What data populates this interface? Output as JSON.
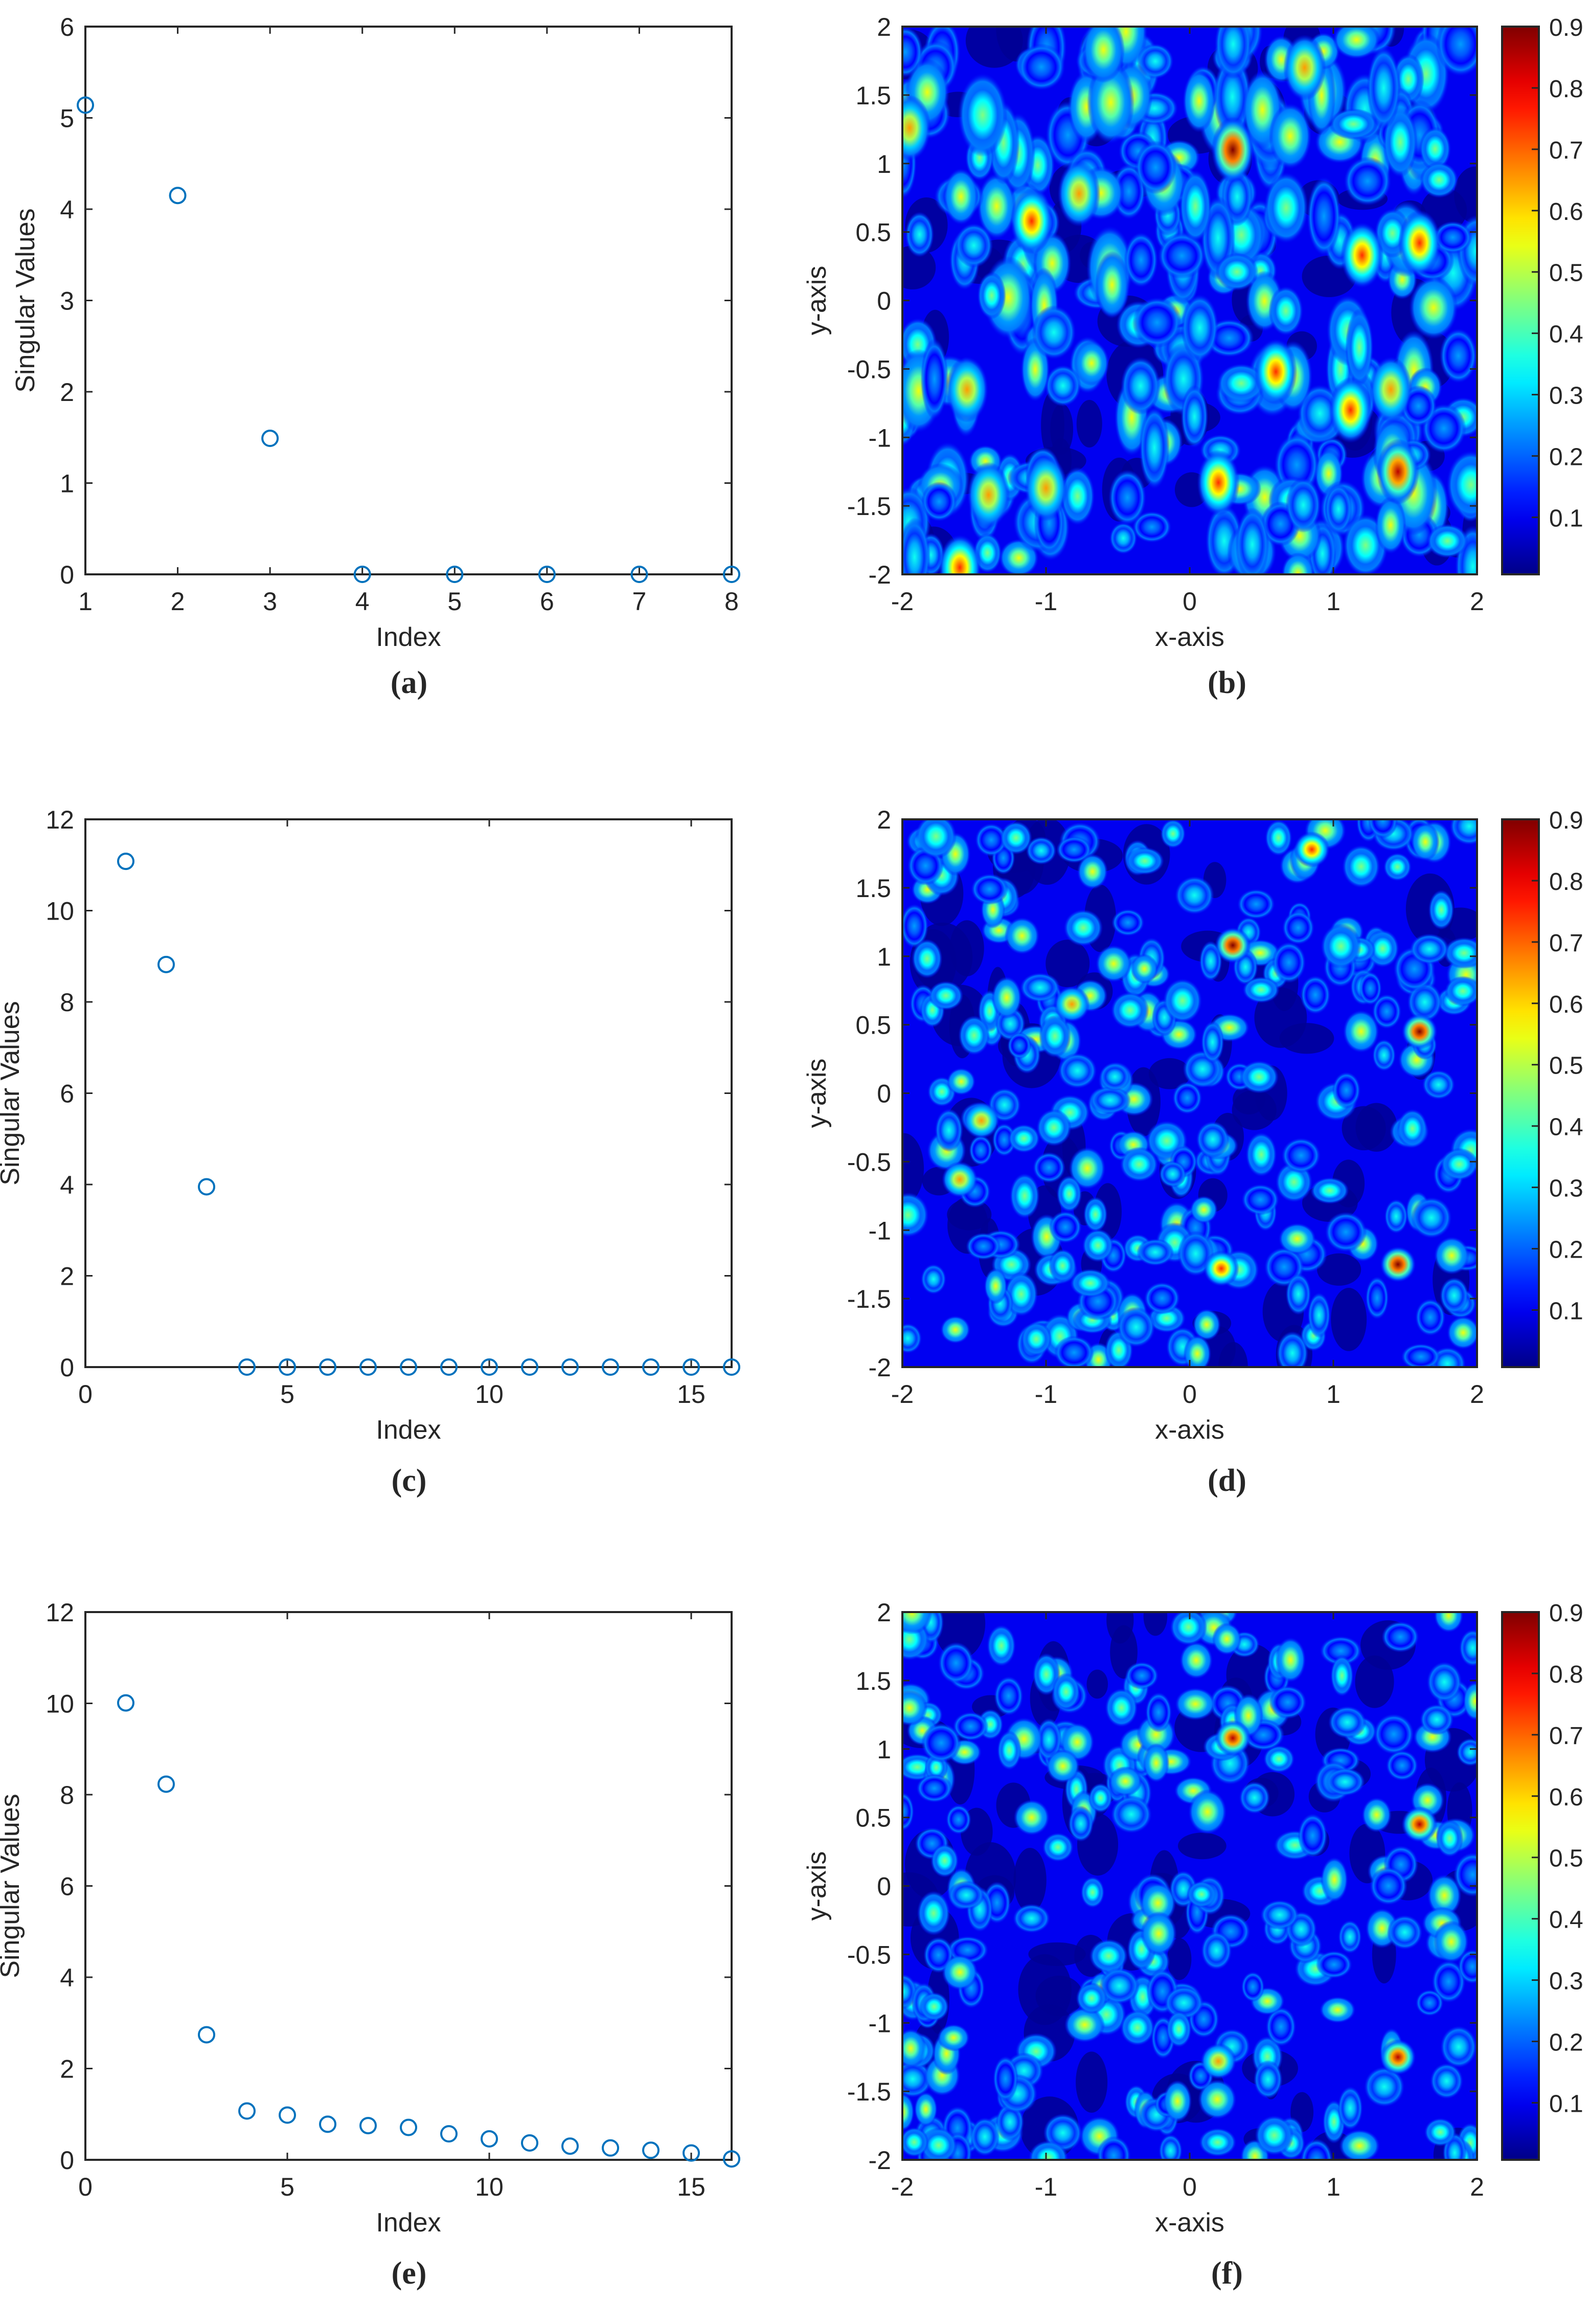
{
  "figure": {
    "captions": [
      "(a)",
      "(b)",
      "(c)",
      "(d)",
      "(e)",
      "(f)"
    ]
  },
  "chart_data": [
    {
      "id": "a",
      "type": "scatter",
      "title": "",
      "caption": "(a)",
      "xlabel": "Index",
      "ylabel": "Singular Values",
      "xlim": [
        1,
        8
      ],
      "ylim": [
        0,
        6
      ],
      "xticks": [
        1,
        2,
        3,
        4,
        5,
        6,
        7,
        8
      ],
      "yticks": [
        0,
        1,
        2,
        3,
        4,
        5,
        6
      ],
      "marker": "open-circle",
      "color": "#0072BD",
      "x": [
        1,
        2,
        3,
        4,
        5,
        6,
        7,
        8
      ],
      "y": [
        5.14,
        4.15,
        1.49,
        0,
        0,
        0,
        0,
        0
      ],
      "grid": false
    },
    {
      "id": "b",
      "type": "heatmap",
      "caption": "(b)",
      "xlabel": "x-axis",
      "ylabel": "y-axis",
      "xlim": [
        -2,
        2
      ],
      "ylim": [
        -2,
        2
      ],
      "xticks": [
        -2,
        -1,
        0,
        1,
        2
      ],
      "yticks": [
        -2,
        -1.5,
        -1,
        -0.5,
        0,
        0.5,
        1,
        1.5,
        2
      ],
      "colormap": "jet",
      "colorbar": {
        "min": 0.007,
        "max": 0.9,
        "ticks": [
          0.1,
          0.2,
          0.3,
          0.4,
          0.5,
          0.6,
          0.7,
          0.8,
          0.9
        ]
      },
      "peaks": [
        {
          "x": 0.3,
          "y": 1.1,
          "v": 0.9
        },
        {
          "x": 1.45,
          "y": -1.25,
          "v": 0.85
        },
        {
          "x": 1.6,
          "y": 0.42,
          "v": 0.75
        },
        {
          "x": -1.6,
          "y": -1.95,
          "v": 0.75
        },
        {
          "x": -1.1,
          "y": 0.58,
          "v": 0.7
        },
        {
          "x": 0.2,
          "y": -1.33,
          "v": 0.72
        },
        {
          "x": 0.6,
          "y": -0.52,
          "v": 0.7
        },
        {
          "x": 1.12,
          "y": -0.8,
          "v": 0.7
        },
        {
          "x": 1.2,
          "y": 0.33,
          "v": 0.68
        },
        {
          "x": -1.95,
          "y": 1.26,
          "v": 0.65
        },
        {
          "x": -1.0,
          "y": -1.37,
          "v": 0.62
        },
        {
          "x": -1.4,
          "y": -1.42,
          "v": 0.6
        },
        {
          "x": 1.4,
          "y": -0.65,
          "v": 0.6
        },
        {
          "x": -0.77,
          "y": 0.78,
          "v": 0.6
        },
        {
          "x": -1.55,
          "y": -0.65,
          "v": 0.58
        },
        {
          "x": 0.7,
          "y": 1.2,
          "v": 0.55
        },
        {
          "x": 0.8,
          "y": 1.7,
          "v": 0.58
        },
        {
          "x": -0.6,
          "y": 1.83,
          "v": 0.55
        }
      ],
      "description": "Contour map of normalized imaging function with many speckle-like peaks; strongest peaks near (0.3,1.1) and (1.45,-1.25)."
    },
    {
      "id": "c",
      "type": "scatter",
      "caption": "(c)",
      "xlabel": "Index",
      "ylabel": "Singular Values",
      "xlim": [
        0,
        16
      ],
      "ylim": [
        0,
        12
      ],
      "xticks": [
        0,
        5,
        10,
        15
      ],
      "yticks": [
        0,
        2,
        4,
        6,
        8,
        10,
        12
      ],
      "marker": "open-circle",
      "color": "#0072BD",
      "x": [
        1,
        2,
        3,
        4,
        5,
        6,
        7,
        8,
        9,
        10,
        11,
        12,
        13,
        14,
        15,
        16
      ],
      "y": [
        11.08,
        8.82,
        3.95,
        0,
        0,
        0,
        0,
        0,
        0,
        0,
        0,
        0,
        0,
        0,
        0,
        0
      ],
      "grid": false
    },
    {
      "id": "d",
      "type": "heatmap",
      "caption": "(d)",
      "xlabel": "x-axis",
      "ylabel": "y-axis",
      "xlim": [
        -2,
        2
      ],
      "ylim": [
        -2,
        2
      ],
      "xticks": [
        -2,
        -1,
        0,
        1,
        2
      ],
      "yticks": [
        -2,
        -1.5,
        -1,
        -0.5,
        0,
        0.5,
        1,
        1.5,
        2
      ],
      "colormap": "jet",
      "colorbar": {
        "min": 0.007,
        "max": 0.9,
        "ticks": [
          0.1,
          0.2,
          0.3,
          0.4,
          0.5,
          0.6,
          0.7,
          0.8,
          0.9
        ]
      },
      "peaks": [
        {
          "x": 0.3,
          "y": 1.08,
          "v": 0.9
        },
        {
          "x": 1.6,
          "y": 0.45,
          "v": 0.9
        },
        {
          "x": 1.45,
          "y": -1.25,
          "v": 0.9
        },
        {
          "x": 0.22,
          "y": -1.28,
          "v": 0.75
        },
        {
          "x": 0.85,
          "y": 1.78,
          "v": 0.7
        },
        {
          "x": -1.45,
          "y": -0.2,
          "v": 0.6
        },
        {
          "x": -1.6,
          "y": -0.63,
          "v": 0.6
        },
        {
          "x": -0.82,
          "y": 0.65,
          "v": 0.6
        }
      ],
      "description": "Contour map with finer speckle; four distinct sharp peaks at (0.3,1.08), (1.6,0.45), (1.45,-1.25), (0.22,-1.28)."
    },
    {
      "id": "e",
      "type": "scatter",
      "caption": "(e)",
      "xlabel": "Index",
      "ylabel": "Singular Values",
      "xlim": [
        0,
        16
      ],
      "ylim": [
        0,
        12
      ],
      "xticks": [
        0,
        5,
        10,
        15
      ],
      "yticks": [
        0,
        2,
        4,
        6,
        8,
        10,
        12
      ],
      "marker": "open-circle",
      "color": "#0072BD",
      "x": [
        1,
        2,
        3,
        4,
        5,
        6,
        7,
        8,
        9,
        10,
        11,
        12,
        13,
        14,
        15,
        16
      ],
      "y": [
        10.01,
        8.23,
        2.74,
        1.07,
        0.98,
        0.78,
        0.75,
        0.71,
        0.57,
        0.46,
        0.37,
        0.3,
        0.26,
        0.21,
        0.15,
        0.02
      ],
      "grid": false
    },
    {
      "id": "f",
      "type": "heatmap",
      "caption": "(f)",
      "xlabel": "x-axis",
      "ylabel": "y-axis",
      "xlim": [
        -2,
        2
      ],
      "ylim": [
        -2,
        2
      ],
      "xticks": [
        -2,
        -1,
        0,
        1,
        2
      ],
      "yticks": [
        -2,
        -1.5,
        -1,
        -0.5,
        0,
        0.5,
        1,
        1.5,
        2
      ],
      "colormap": "jet",
      "colorbar": {
        "min": 0.007,
        "max": 0.9,
        "ticks": [
          0.1,
          0.2,
          0.3,
          0.4,
          0.5,
          0.6,
          0.7,
          0.8,
          0.9
        ]
      },
      "peaks": [
        {
          "x": 0.3,
          "y": 1.08,
          "v": 0.85
        },
        {
          "x": 1.6,
          "y": 0.45,
          "v": 0.85
        },
        {
          "x": 1.45,
          "y": -1.25,
          "v": 0.85
        },
        {
          "x": 0.2,
          "y": -1.28,
          "v": 0.65
        },
        {
          "x": -1.95,
          "y": 1.3,
          "v": 0.55
        },
        {
          "x": -1.6,
          "y": -0.63,
          "v": 0.55
        },
        {
          "x": -1.1,
          "y": 0.5,
          "v": 0.55
        }
      ],
      "description": "Contour map with noise; peaks near (0.3,1.08), (1.6,0.45), (1.45,-1.25) and a weaker one at (0.2,-1.28)."
    }
  ]
}
